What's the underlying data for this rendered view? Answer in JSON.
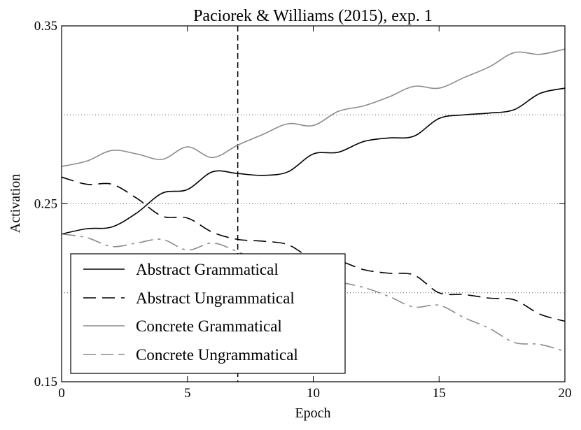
{
  "chart_data": {
    "type": "line",
    "title": "Paciorek & Williams (2015), exp. 1",
    "xlabel": "Epoch",
    "ylabel": "Activation",
    "xlim": [
      0,
      20
    ],
    "ylim": [
      0.15,
      0.35
    ],
    "xticks": [
      0,
      5,
      10,
      15,
      20
    ],
    "xtick_labels": [
      "0",
      "5",
      "10",
      "15",
      "20"
    ],
    "yticks": [
      0.15,
      0.25,
      0.35
    ],
    "ytick_labels": [
      "0.15",
      "0.25",
      "0.35"
    ],
    "grid": "horizontal dotted at 0.20, 0.25, 0.30",
    "reference_line": {
      "x": 7,
      "style": "dashed"
    },
    "legend_position": "lower-left",
    "x": [
      0,
      1,
      2,
      3,
      4,
      5,
      6,
      7,
      8,
      9,
      10,
      11,
      12,
      13,
      14,
      15,
      16,
      17,
      18,
      19,
      20
    ],
    "series": [
      {
        "name": "Abstract Grammatical",
        "color": "#000000",
        "dash": "solid",
        "values": [
          0.233,
          0.236,
          0.237,
          0.245,
          0.256,
          0.258,
          0.268,
          0.267,
          0.266,
          0.268,
          0.278,
          0.279,
          0.285,
          0.287,
          0.288,
          0.298,
          0.3,
          0.301,
          0.303,
          0.312,
          0.315
        ]
      },
      {
        "name": "Abstract Ungrammatical",
        "color": "#000000",
        "dash": "long-dash",
        "values": [
          0.265,
          0.261,
          0.261,
          0.253,
          0.243,
          0.242,
          0.234,
          0.23,
          0.229,
          0.227,
          0.219,
          0.218,
          0.213,
          0.211,
          0.21,
          0.2,
          0.199,
          0.197,
          0.196,
          0.188,
          0.184
        ]
      },
      {
        "name": "Concrete Grammatical",
        "color": "#8c8c8c",
        "dash": "solid",
        "values": [
          0.271,
          0.274,
          0.28,
          0.278,
          0.275,
          0.282,
          0.276,
          0.283,
          0.289,
          0.295,
          0.294,
          0.302,
          0.305,
          0.31,
          0.316,
          0.315,
          0.321,
          0.327,
          0.335,
          0.334,
          0.337
        ]
      },
      {
        "name": "Concrete Ungrammatical",
        "color": "#8c8c8c",
        "dash": "dash-dot",
        "values": [
          0.233,
          0.231,
          0.226,
          0.228,
          0.23,
          0.224,
          0.228,
          0.223,
          0.217,
          0.213,
          0.208,
          0.206,
          0.203,
          0.198,
          0.192,
          0.193,
          0.186,
          0.18,
          0.172,
          0.171,
          0.167
        ]
      }
    ]
  }
}
